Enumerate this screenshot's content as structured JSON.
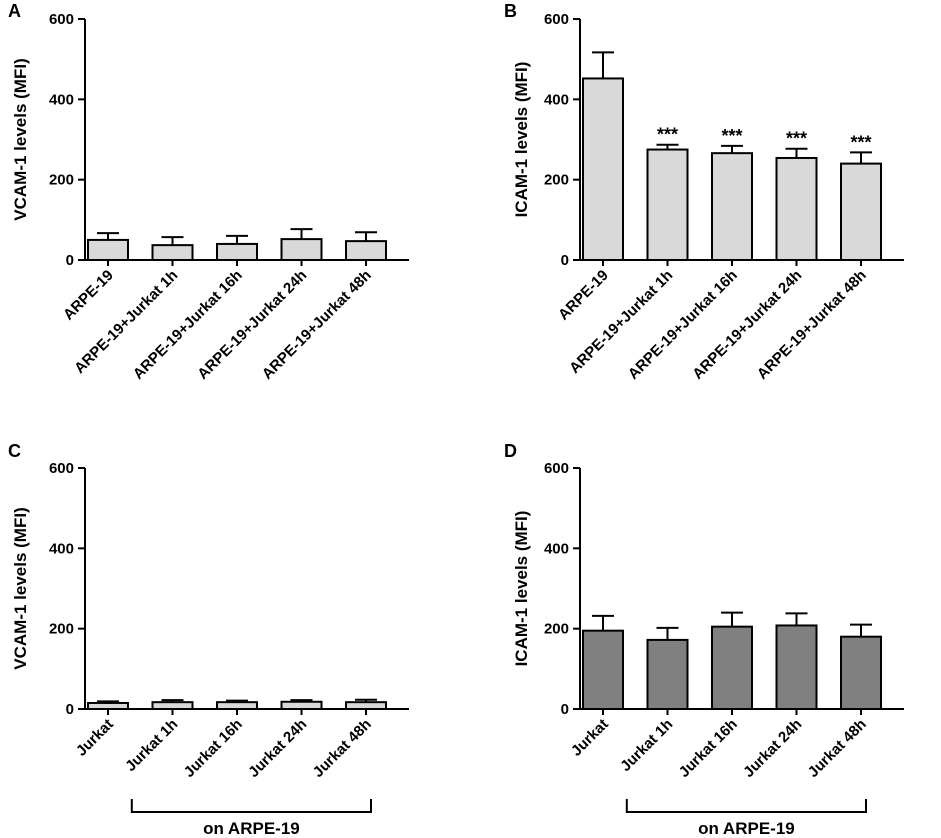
{
  "chart_data": [
    {
      "type": "bar",
      "panel": "A",
      "ylabel": "VCAM-1 levels (MFI)",
      "ylim": [
        0,
        600
      ],
      "yticks": [
        "0",
        "200",
        "400",
        "600"
      ],
      "categories": [
        "ARPE-19",
        "ARPE-19+Jurkat 1h",
        "ARPE-19+Jurkat 16h",
        "ARPE-19+Jurkat 24h",
        "ARPE-19+Jurkat 48h"
      ],
      "values": [
        50,
        37,
        40,
        52,
        47
      ],
      "errors": [
        17,
        20,
        20,
        25,
        22
      ],
      "significance": [
        "",
        "",
        "",
        "",
        ""
      ],
      "bar_color": "#d9d9d9",
      "group_label": ""
    },
    {
      "type": "bar",
      "panel": "B",
      "ylabel": "ICAM-1 levels (MFI)",
      "ylim": [
        0,
        600
      ],
      "yticks": [
        "0",
        "200",
        "400",
        "600"
      ],
      "categories": [
        "ARPE-19",
        "ARPE-19+Jurkat 1h",
        "ARPE-19+Jurkat 16h",
        "ARPE-19+Jurkat 24h",
        "ARPE-19+Jurkat 48h"
      ],
      "values": [
        452,
        275,
        266,
        254,
        240
      ],
      "errors": [
        65,
        12,
        18,
        23,
        28
      ],
      "significance": [
        "",
        "***",
        "***",
        "***",
        "***"
      ],
      "bar_color": "#d9d9d9",
      "group_label": ""
    },
    {
      "type": "bar",
      "panel": "C",
      "ylabel": "VCAM-1 levels (MFI)",
      "ylim": [
        0,
        600
      ],
      "yticks": [
        "0",
        "200",
        "400",
        "600"
      ],
      "categories": [
        "Jurkat",
        "Jurkat 1h",
        "Jurkat 16h",
        "Jurkat 24h",
        "Jurkat 48h"
      ],
      "values": [
        15,
        17,
        17,
        18,
        17
      ],
      "errors": [
        4,
        5,
        4,
        4,
        6
      ],
      "significance": [
        "",
        "",
        "",
        "",
        ""
      ],
      "bar_color": "#d9d9d9",
      "group_label": "on ARPE-19"
    },
    {
      "type": "bar",
      "panel": "D",
      "ylabel": "ICAM-1 levels (MFI)",
      "ylim": [
        0,
        600
      ],
      "yticks": [
        "0",
        "200",
        "400",
        "600"
      ],
      "categories": [
        "Jurkat",
        "Jurkat 1h",
        "Jurkat 16h",
        "Jurkat 24h",
        "Jurkat 48h"
      ],
      "values": [
        195,
        172,
        205,
        208,
        180
      ],
      "errors": [
        37,
        30,
        35,
        30,
        30
      ],
      "significance": [
        "",
        "",
        "",
        "",
        ""
      ],
      "bar_color": "#808080",
      "group_label": "on ARPE-19"
    }
  ]
}
